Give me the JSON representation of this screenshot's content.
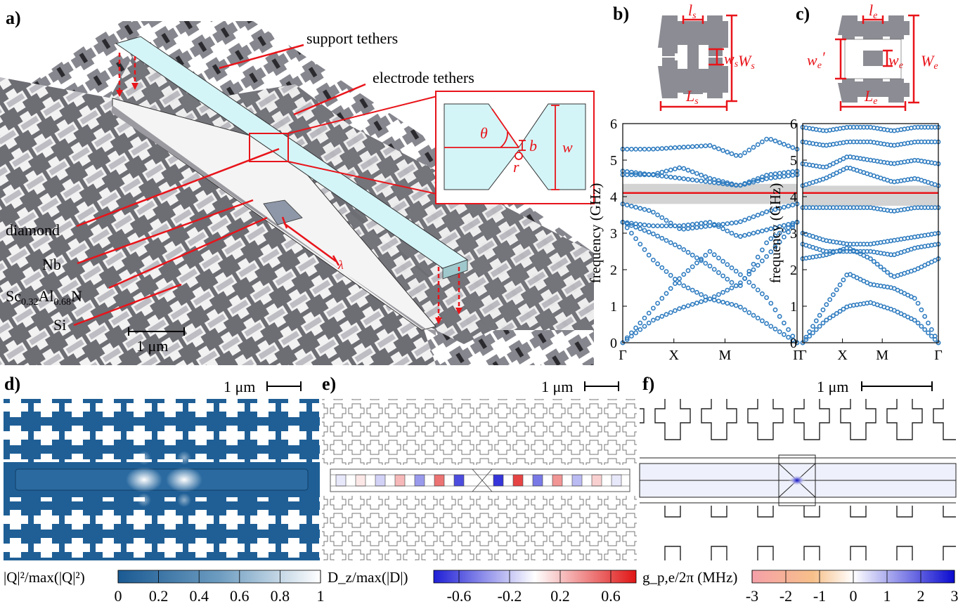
{
  "panel_labels": {
    "a": "a)",
    "b": "b)",
    "c": "c)",
    "d": "d)",
    "e": "e)",
    "f": "f)"
  },
  "panel_a": {
    "support_tethers": "support tethers",
    "electrode_tethers": "electrode tethers",
    "diamond": "diamond",
    "nb": "Nb",
    "scaln_base": "Sc",
    "scaln_sub1": "0.32",
    "scaln_mid": "Al",
    "scaln_sub2": "0.68",
    "scaln_end": "N",
    "si": "Si",
    "scalebar": "1 μm",
    "lambda": "λ",
    "inset": {
      "theta": "θ",
      "b": "b",
      "w": "w",
      "r": "r"
    }
  },
  "panel_b": {
    "dims": {
      "l": "l",
      "l_sub": "s",
      "w": "w",
      "w_sub": "s",
      "W": "W",
      "W_sub": "s",
      "L": "L",
      "L_sub": "s"
    },
    "chart_data": {
      "type": "scatter",
      "ylabel": "frequency (GHz)",
      "ylim": [
        0,
        6
      ],
      "yticks": [
        "0",
        "1",
        "2",
        "3",
        "4",
        "5",
        "6"
      ],
      "xticks": [
        "Γ",
        "X",
        "M",
        "Γ"
      ],
      "bandgap": [
        3.8,
        4.35
      ],
      "operating_frequency": 4.1,
      "bands": [
        [
          0.0,
          0.9,
          1.8,
          2.5,
          1.9,
          1.2,
          0.0
        ],
        [
          0.0,
          0.6,
          0.95,
          1.2,
          1.0,
          0.5,
          0.0
        ],
        [
          3.3,
          2.3,
          1.6,
          1.2,
          1.6,
          2.4,
          3.3
        ],
        [
          3.3,
          3.0,
          2.6,
          2.1,
          1.5,
          2.8,
          3.3
        ],
        [
          3.3,
          3.2,
          3.2,
          3.3,
          2.9,
          3.1,
          3.3
        ],
        [
          3.8,
          3.6,
          3.1,
          3.2,
          3.3,
          3.6,
          3.8
        ],
        [
          4.6,
          4.6,
          4.5,
          4.4,
          4.3,
          4.5,
          4.6
        ],
        [
          4.7,
          4.6,
          4.8,
          4.5,
          4.3,
          4.6,
          4.7
        ],
        [
          5.3,
          5.3,
          5.35,
          5.4,
          5.1,
          5.6,
          5.3
        ]
      ]
    }
  },
  "panel_c": {
    "dims": {
      "l": "l",
      "l_sub": "e",
      "w": "w",
      "w_sub": "e",
      "wp": "w",
      "wp_sub": "e",
      "wp_prime": "′",
      "W": "W",
      "W_sub": "e",
      "L": "L",
      "L_sub": "e"
    },
    "chart_data": {
      "type": "scatter",
      "ylabel": "frequency (GHz)",
      "ylim": [
        0,
        6
      ],
      "yticks": [
        "0",
        "1",
        "2",
        "3",
        "4",
        "5",
        "6"
      ],
      "xticks": [
        "Γ",
        "X",
        "M",
        "Γ"
      ],
      "bandgap": [
        3.75,
        4.3
      ],
      "operating_frequency": 4.1,
      "bands": [
        [
          0.0,
          1.0,
          1.9,
          1.6,
          1.5,
          1.2,
          0.0
        ],
        [
          0.0,
          0.6,
          1.0,
          1.1,
          0.9,
          0.6,
          0.0
        ],
        [
          2.3,
          2.4,
          2.6,
          2.3,
          1.8,
          2.0,
          2.3
        ],
        [
          2.7,
          2.5,
          2.5,
          2.5,
          2.4,
          2.6,
          2.7
        ],
        [
          3.0,
          2.8,
          2.7,
          2.7,
          2.8,
          2.9,
          3.0
        ],
        [
          3.7,
          3.7,
          3.7,
          3.7,
          3.6,
          3.7,
          3.7
        ],
        [
          4.3,
          4.5,
          4.8,
          4.6,
          4.4,
          4.5,
          4.3
        ],
        [
          4.9,
          4.8,
          5.1,
          5.0,
          4.9,
          5.0,
          4.9
        ],
        [
          5.5,
          5.4,
          5.5,
          5.5,
          5.4,
          5.5,
          5.5
        ],
        [
          5.9,
          5.8,
          5.9,
          5.9,
          5.8,
          5.9,
          5.9
        ]
      ]
    }
  },
  "panel_d": {
    "scalebar": "1 μm",
    "cbar_label": "|Q|²/max(|Q|²)",
    "cbar_ticks": [
      "0",
      "0.2",
      "0.4",
      "0.6",
      "0.8",
      "1"
    ]
  },
  "panel_e": {
    "scalebar": "1 μm",
    "cbar_label": "D_z/max(|D|)",
    "cbar_ticks": [
      "-0.6",
      "-0.2",
      "0.2",
      "0.6"
    ]
  },
  "panel_f": {
    "scalebar": "1 μm",
    "cbar_label": "g_p,e/2π (MHz)",
    "cbar_ticks": [
      "-3",
      "-2",
      "-1",
      "0",
      "1",
      "2",
      "3"
    ]
  },
  "colors": {
    "accent": "#e8141a",
    "device_gray": "#8c8c94",
    "dot_blue": "#2f7cc0",
    "beam_cyan": "#d4f5f8"
  }
}
